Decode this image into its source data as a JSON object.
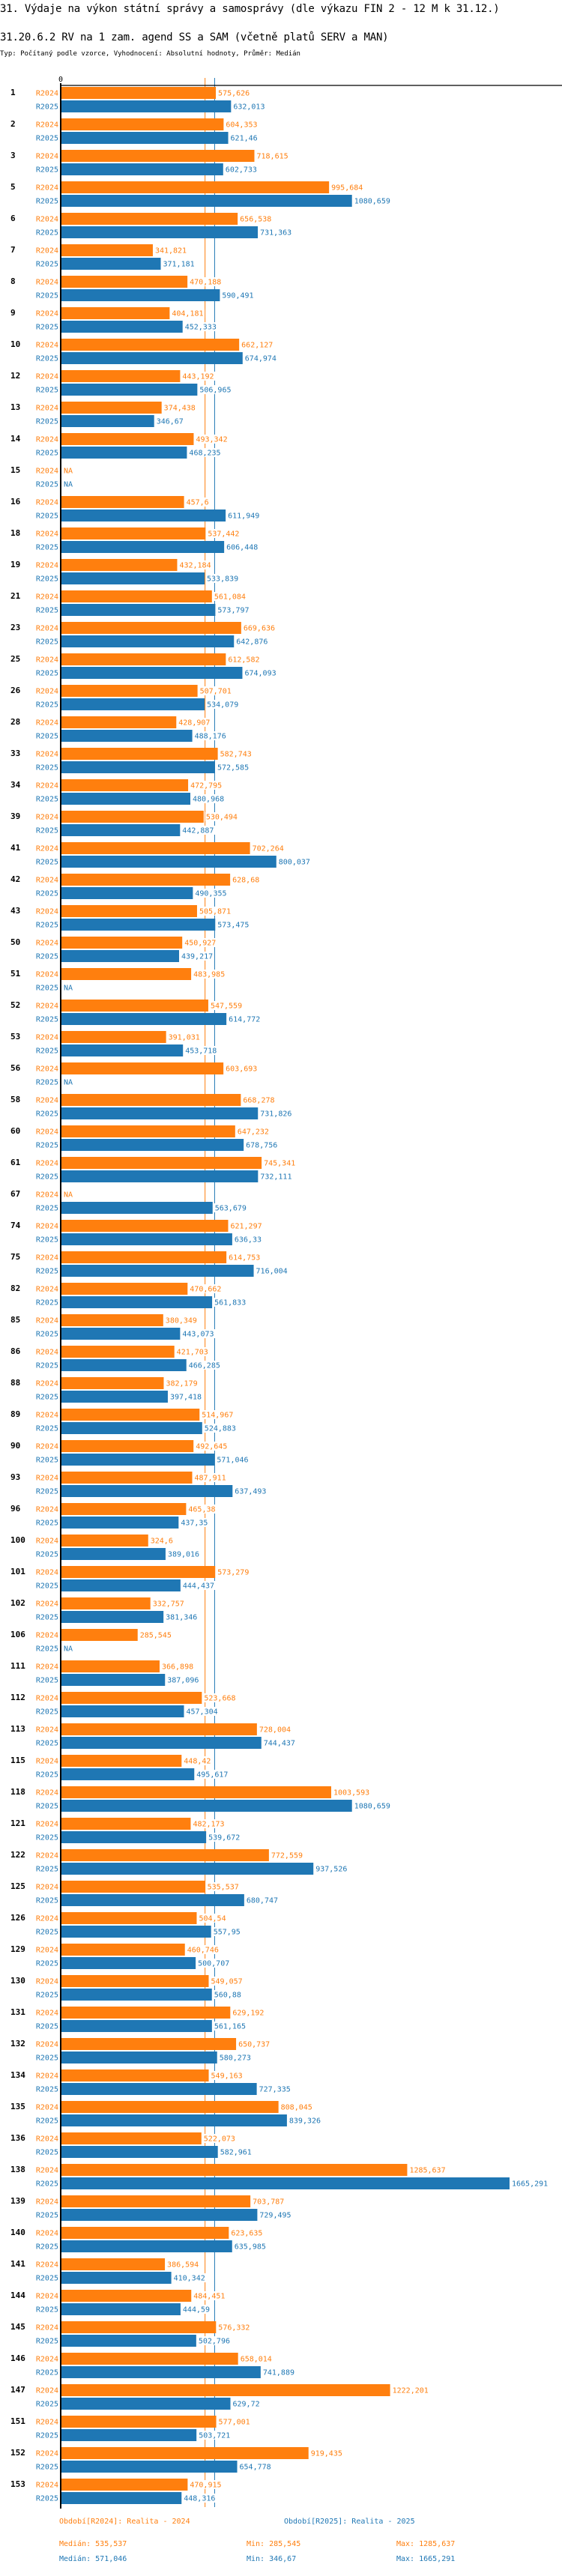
{
  "header": {
    "title": "31. Výdaje na výkon státní správy a samosprávy (dle výkazu FIN 2 - 12 M k 31.12.)",
    "subtitle": "31.20.6.2 RV na 1 zam. agend SS a SAM (včetně platů SERV a MAN)",
    "meta": "Typ: Počítaný podle vzorce, Vyhodnocení: Absolutní hodnoty, Průměr: Medián"
  },
  "colors": {
    "R2024": "#ff7f0e",
    "R2025": "#1f77b4",
    "axis": "#000000"
  },
  "chart_data": {
    "type": "bar",
    "orientation": "horizontal",
    "title": "31.20.6.2 RV na 1 zam. agend SS a SAM (včetně platů SERV a MAN)",
    "xlabel": "",
    "ylabel": "",
    "x_tick_labels": [
      "0"
    ],
    "xlim": [
      0,
      1800000
    ],
    "grid": false,
    "na_label": "NA",
    "categories": [
      "1",
      "2",
      "3",
      "5",
      "6",
      "7",
      "8",
      "9",
      "10",
      "12",
      "13",
      "14",
      "15",
      "16",
      "18",
      "19",
      "21",
      "23",
      "25",
      "26",
      "28",
      "33",
      "34",
      "39",
      "41",
      "42",
      "43",
      "50",
      "51",
      "52",
      "53",
      "56",
      "58",
      "60",
      "61",
      "67",
      "74",
      "75",
      "82",
      "85",
      "86",
      "88",
      "89",
      "90",
      "93",
      "96",
      "100",
      "101",
      "102",
      "106",
      "111",
      "112",
      "113",
      "115",
      "118",
      "121",
      "122",
      "125",
      "126",
      "129",
      "130",
      "131",
      "132",
      "134",
      "135",
      "136",
      "138",
      "139",
      "140",
      "141",
      "144",
      "145",
      "146",
      "147",
      "151",
      "152",
      "153"
    ],
    "series": [
      {
        "name": "R2024",
        "values": [
          575626,
          604353,
          718615,
          995684,
          656538,
          341821,
          470188,
          404181,
          662127,
          443192,
          374438,
          493342,
          null,
          457600,
          537442,
          432184,
          561084,
          669636,
          612582,
          507701,
          428907,
          582743,
          472795,
          530494,
          702264,
          628680,
          505871,
          450927,
          483985,
          547559,
          391031,
          603693,
          668278,
          647232,
          745341,
          null,
          621297,
          614753,
          470662,
          380349,
          421703,
          382179,
          514967,
          492645,
          487911,
          465380,
          324600,
          573279,
          332757,
          285545,
          366898,
          523668,
          728004,
          448420,
          1003593,
          482173,
          772559,
          535537,
          504540,
          460746,
          549057,
          629192,
          650737,
          549163,
          808045,
          522073,
          1285637,
          703787,
          623635,
          386594,
          484451,
          576332,
          658014,
          1222201,
          577001,
          919435,
          470915
        ],
        "labels": [
          "575,626",
          "604,353",
          "718,615",
          "995,684",
          "656,538",
          "341,821",
          "470,188",
          "404,181",
          "662,127",
          "443,192",
          "374,438",
          "493,342",
          "NA",
          "457,6",
          "537,442",
          "432,184",
          "561,084",
          "669,636",
          "612,582",
          "507,701",
          "428,907",
          "582,743",
          "472,795",
          "530,494",
          "702,264",
          "628,68",
          "505,871",
          "450,927",
          "483,985",
          "547,559",
          "391,031",
          "603,693",
          "668,278",
          "647,232",
          "745,341",
          "NA",
          "621,297",
          "614,753",
          "470,662",
          "380,349",
          "421,703",
          "382,179",
          "514,967",
          "492,645",
          "487,911",
          "465,38",
          "324,6",
          "573,279",
          "332,757",
          "285,545",
          "366,898",
          "523,668",
          "728,004",
          "448,42",
          "1003,593",
          "482,173",
          "772,559",
          "535,537",
          "504,54",
          "460,746",
          "549,057",
          "629,192",
          "650,737",
          "549,163",
          "808,045",
          "522,073",
          "1285,637",
          "703,787",
          "623,635",
          "386,594",
          "484,451",
          "576,332",
          "658,014",
          "1222,201",
          "577,001",
          "919,435",
          "470,915"
        ]
      },
      {
        "name": "R2025",
        "values": [
          632013,
          621460,
          602733,
          1080659,
          731363,
          371181,
          590491,
          452333,
          674974,
          506965,
          346670,
          468235,
          null,
          611949,
          606448,
          533839,
          573797,
          642876,
          674093,
          534079,
          488176,
          572585,
          480968,
          442887,
          800037,
          490355,
          573475,
          439217,
          null,
          614772,
          453718,
          null,
          731826,
          678756,
          732111,
          563679,
          636330,
          716004,
          561833,
          443073,
          466285,
          397418,
          524883,
          571046,
          637493,
          437350,
          389016,
          444437,
          381346,
          null,
          387096,
          457304,
          744437,
          495617,
          1080659,
          539672,
          937526,
          680747,
          557950,
          500707,
          560880,
          561165,
          580273,
          727335,
          839326,
          582961,
          1665291,
          729495,
          635985,
          410342,
          444590,
          502796,
          741889,
          629720,
          503721,
          654778,
          448316
        ],
        "labels": [
          "632,013",
          "621,46",
          "602,733",
          "1080,659",
          "731,363",
          "371,181",
          "590,491",
          "452,333",
          "674,974",
          "506,965",
          "346,67",
          "468,235",
          "NA",
          "611,949",
          "606,448",
          "533,839",
          "573,797",
          "642,876",
          "674,093",
          "534,079",
          "488,176",
          "572,585",
          "480,968",
          "442,887",
          "800,037",
          "490,355",
          "573,475",
          "439,217",
          "NA",
          "614,772",
          "453,718",
          "NA",
          "731,826",
          "678,756",
          "732,111",
          "563,679",
          "636,33",
          "716,004",
          "561,833",
          "443,073",
          "466,285",
          "397,418",
          "524,883",
          "571,046",
          "637,493",
          "437,35",
          "389,016",
          "444,437",
          "381,346",
          "NA",
          "387,096",
          "457,304",
          "744,437",
          "495,617",
          "1080,659",
          "539,672",
          "937,526",
          "680,747",
          "557,95",
          "500,707",
          "560,88",
          "561,165",
          "580,273",
          "727,335",
          "839,326",
          "582,961",
          "1665,291",
          "729,495",
          "635,985",
          "410,342",
          "444,59",
          "502,796",
          "741,889",
          "629,72",
          "503,721",
          "654,778",
          "448,316"
        ]
      }
    ],
    "reference_lines": [
      {
        "series": "R2024",
        "type": "median",
        "value": 535537
      },
      {
        "series": "R2025",
        "type": "median",
        "value": 571046
      }
    ],
    "legend": {
      "placement": "bottom",
      "items": [
        {
          "series": "R2024",
          "label": "Období[R2024]: Realita - 2024"
        },
        {
          "series": "R2025",
          "label": "Období[R2025]: Realita - 2025"
        }
      ]
    },
    "stats": [
      {
        "series": "R2024",
        "median": "Medián: 535,537",
        "min": "Min: 285,545",
        "max": "Max: 1285,637"
      },
      {
        "series": "R2025",
        "median": "Medián: 571,046",
        "min": "Min: 346,67",
        "max": "Max: 1665,291"
      }
    ]
  }
}
